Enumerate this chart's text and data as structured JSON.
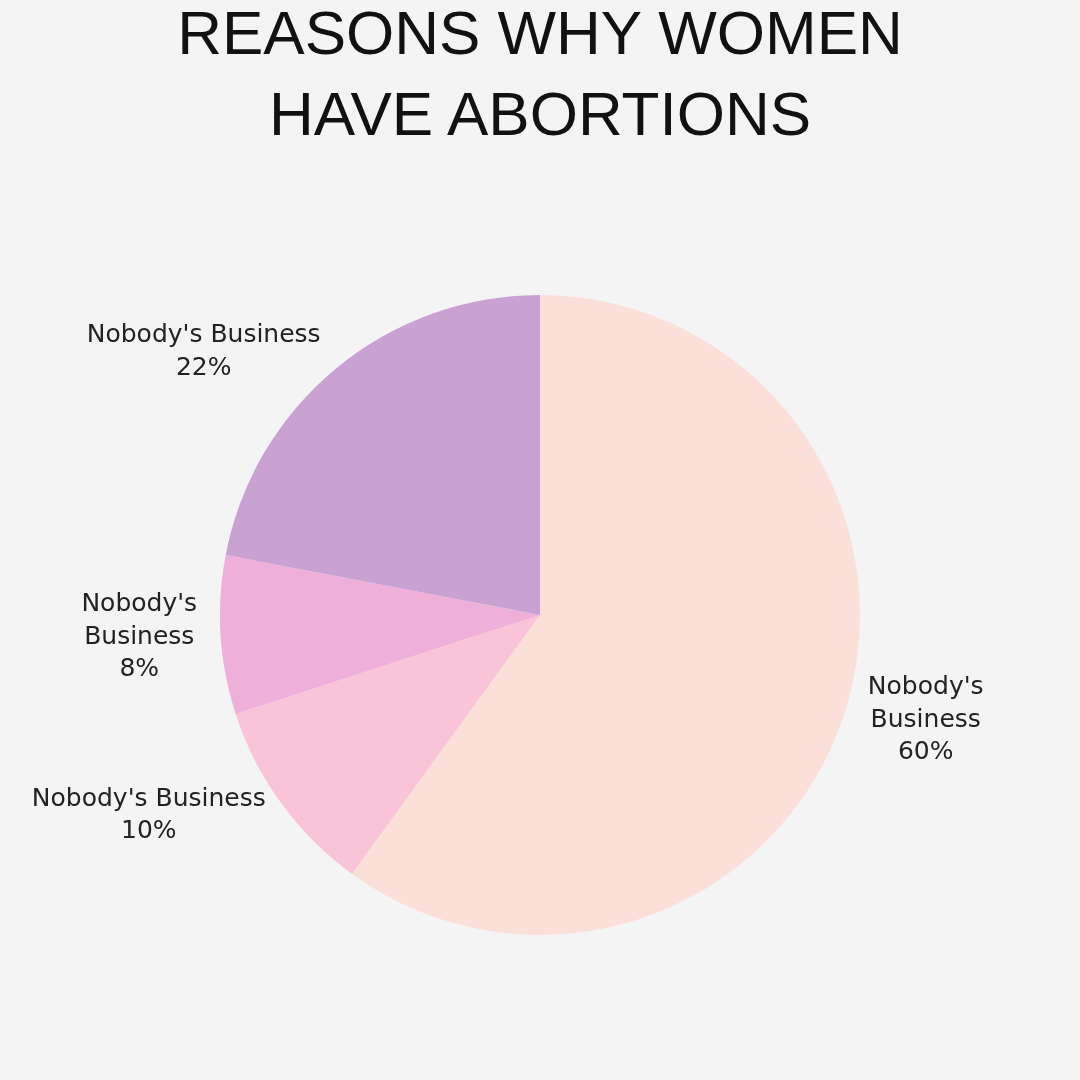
{
  "chart_data": {
    "type": "pie",
    "title": "REASONS WHY WOMEN\nHAVE ABORTIONS",
    "categories": [
      "Nobody's Business",
      "Nobody's Business",
      "Nobody's Business",
      "Nobody's Business"
    ],
    "values": [
      60,
      10,
      8,
      22
    ],
    "value_labels": [
      "60%",
      "10%",
      "8%",
      "22%"
    ],
    "colors": [
      "#fbe0da",
      "#f9c3d8",
      "#eeb0d8",
      "#c9a1d3"
    ],
    "legend": false
  }
}
